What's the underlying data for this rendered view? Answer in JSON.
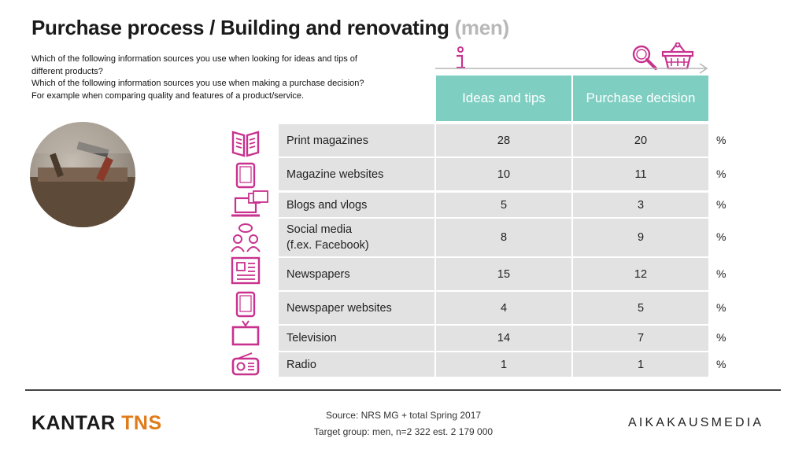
{
  "title": {
    "main": "Purchase process / Building and renovating",
    "suffix": "(men)"
  },
  "questions": [
    "Which of the following information sources you use when looking for ideas and tips of",
    "different products?",
    "Which of the following information sources you use when making a purchase decision?",
    "For example when comparing quality and features of a product/service."
  ],
  "icons": {
    "ideas": "info-icon",
    "search": "magnifier-icon",
    "basket": "shopping-basket-icon",
    "rows": [
      "magazine-icon",
      "tablet-icon",
      "laptop-icon",
      "people-icon",
      "newspaper-icon",
      "tablet-icon",
      "tv-icon",
      "radio-icon"
    ]
  },
  "colors": {
    "header_bg": "#7ecfc2",
    "icon_accent": "#c8328e",
    "cell_bg": "#e2e2e2"
  },
  "chart_data": {
    "type": "table",
    "columns": [
      "Ideas and tips",
      "Purchase decision"
    ],
    "unit": "%",
    "rows": [
      {
        "label": [
          "Print magazines"
        ],
        "values": [
          28,
          20
        ]
      },
      {
        "label": [
          "Magazine websites"
        ],
        "values": [
          10,
          11
        ]
      },
      {
        "label": [
          "Blogs and vlogs"
        ],
        "values": [
          5,
          3
        ]
      },
      {
        "label": [
          "Social media",
          "(f.ex. Facebook)"
        ],
        "values": [
          8,
          9
        ]
      },
      {
        "label": [
          "Newspapers"
        ],
        "values": [
          15,
          12
        ]
      },
      {
        "label": [
          "Newspaper websites"
        ],
        "values": [
          4,
          5
        ]
      },
      {
        "label": [
          "Television"
        ],
        "values": [
          14,
          7
        ]
      },
      {
        "label": [
          "Radio"
        ],
        "values": [
          1,
          1
        ]
      }
    ]
  },
  "footer": {
    "source": "Source: NRS MG + total Spring 2017",
    "target": "Target group: men, n=2 322 est. 2 179 000",
    "logo_left_a": "KANTAR",
    "logo_left_b": "TNS",
    "logo_right": "AIKAKAUSMEDIA"
  }
}
